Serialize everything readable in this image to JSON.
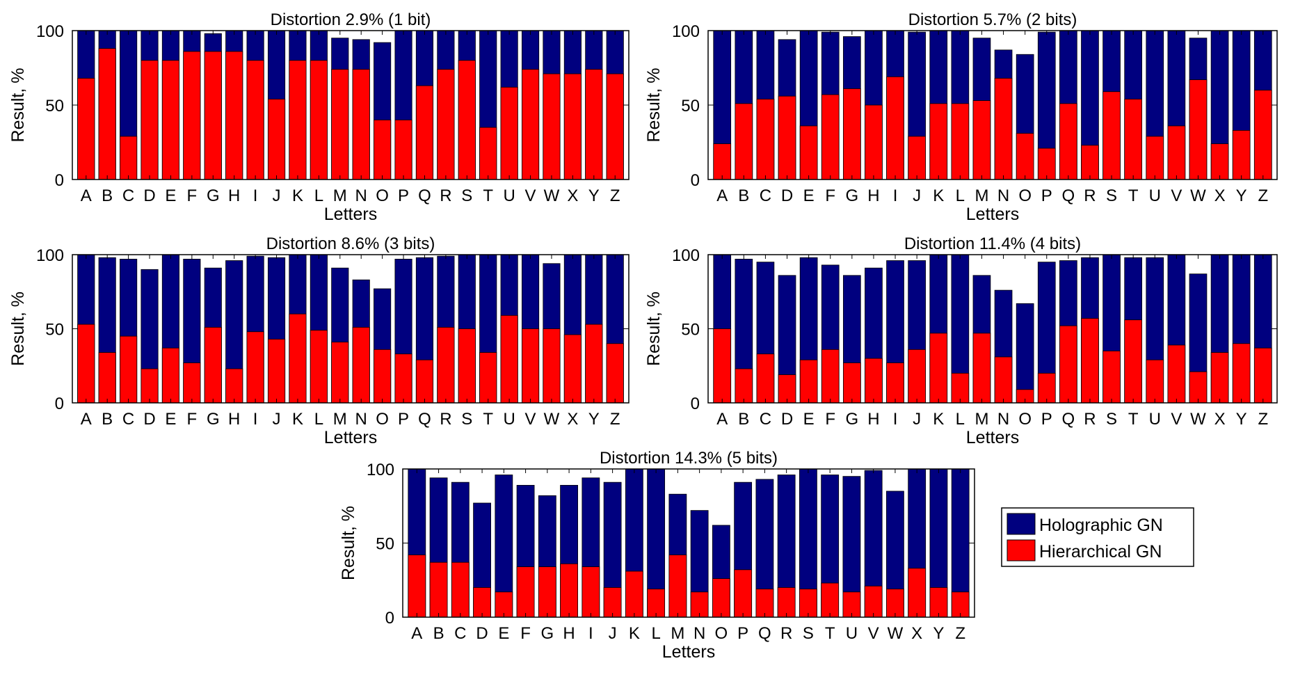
{
  "figure": {
    "legend": {
      "entries": [
        "Holographic GN",
        "Hierarchical GN"
      ],
      "position": "right of bottom panel"
    }
  },
  "colors": {
    "holographic": "#00007f",
    "hierarchical": "#ff0000"
  },
  "chart_data": [
    {
      "type": "bar",
      "title": "Distortion 2.9% (1 bit)",
      "xlabel": "Letters",
      "ylabel": "Result, %",
      "ylim": [
        0,
        100
      ],
      "yticks": [
        "0",
        "50",
        "100"
      ],
      "categories": [
        "A",
        "B",
        "C",
        "D",
        "E",
        "F",
        "G",
        "H",
        "I",
        "J",
        "K",
        "L",
        "M",
        "N",
        "O",
        "P",
        "Q",
        "R",
        "S",
        "T",
        "U",
        "V",
        "W",
        "X",
        "Y",
        "Z"
      ],
      "series": [
        {
          "name": "Holographic GN",
          "values": [
            100,
            100,
            100,
            100,
            100,
            100,
            98,
            100,
            100,
            100,
            100,
            100,
            95,
            94,
            92,
            100,
            100,
            100,
            100,
            100,
            100,
            100,
            100,
            100,
            100,
            100
          ]
        },
        {
          "name": "Hierarchical GN",
          "values": [
            68,
            88,
            29,
            80,
            80,
            86,
            86,
            86,
            80,
            54,
            80,
            80,
            74,
            74,
            40,
            40,
            63,
            74,
            80,
            35,
            62,
            74,
            71,
            71,
            74,
            71
          ]
        }
      ]
    },
    {
      "type": "bar",
      "title": "Distortion 5.7% (2 bits)",
      "xlabel": "Letters",
      "ylabel": "Result, %",
      "ylim": [
        0,
        100
      ],
      "yticks": [
        "0",
        "50",
        "100"
      ],
      "categories": [
        "A",
        "B",
        "C",
        "D",
        "E",
        "F",
        "G",
        "H",
        "I",
        "J",
        "K",
        "L",
        "M",
        "N",
        "O",
        "P",
        "Q",
        "R",
        "S",
        "T",
        "U",
        "V",
        "W",
        "X",
        "Y",
        "Z"
      ],
      "series": [
        {
          "name": "Holographic GN",
          "values": [
            100,
            100,
            100,
            94,
            100,
            99,
            96,
            100,
            100,
            99,
            100,
            100,
            95,
            87,
            84,
            99,
            100,
            100,
            100,
            100,
            100,
            100,
            95,
            100,
            100,
            100
          ]
        },
        {
          "name": "Hierarchical GN",
          "values": [
            24,
            51,
            54,
            56,
            36,
            57,
            61,
            50,
            69,
            29,
            51,
            51,
            53,
            68,
            31,
            21,
            51,
            23,
            59,
            54,
            29,
            36,
            67,
            24,
            33,
            60
          ]
        }
      ]
    },
    {
      "type": "bar",
      "title": "Distortion 8.6% (3 bits)",
      "xlabel": "Letters",
      "ylabel": "Result, %",
      "ylim": [
        0,
        100
      ],
      "yticks": [
        "0",
        "50",
        "100"
      ],
      "categories": [
        "A",
        "B",
        "C",
        "D",
        "E",
        "F",
        "G",
        "H",
        "I",
        "J",
        "K",
        "L",
        "M",
        "N",
        "O",
        "P",
        "Q",
        "R",
        "S",
        "T",
        "U",
        "V",
        "W",
        "X",
        "Y",
        "Z"
      ],
      "series": [
        {
          "name": "Holographic GN",
          "values": [
            100,
            98,
            97,
            90,
            100,
            97,
            91,
            96,
            99,
            98,
            100,
            100,
            91,
            83,
            77,
            97,
            98,
            99,
            100,
            100,
            100,
            100,
            94,
            100,
            100,
            100
          ]
        },
        {
          "name": "Hierarchical GN",
          "values": [
            53,
            34,
            45,
            23,
            37,
            27,
            51,
            23,
            48,
            43,
            60,
            49,
            41,
            51,
            36,
            33,
            29,
            51,
            50,
            34,
            59,
            50,
            50,
            46,
            53,
            40
          ]
        }
      ]
    },
    {
      "type": "bar",
      "title": "Distortion 11.4% (4 bits)",
      "xlabel": "Letters",
      "ylabel": "Result, %",
      "ylim": [
        0,
        100
      ],
      "yticks": [
        "0",
        "50",
        "100"
      ],
      "categories": [
        "A",
        "B",
        "C",
        "D",
        "E",
        "F",
        "G",
        "H",
        "I",
        "J",
        "K",
        "L",
        "M",
        "N",
        "O",
        "P",
        "Q",
        "R",
        "S",
        "T",
        "U",
        "V",
        "W",
        "X",
        "Y",
        "Z"
      ],
      "series": [
        {
          "name": "Holographic GN",
          "values": [
            100,
            97,
            95,
            86,
            98,
            93,
            86,
            91,
            96,
            96,
            100,
            100,
            86,
            76,
            67,
            95,
            96,
            98,
            100,
            98,
            98,
            100,
            87,
            100,
            100,
            100
          ]
        },
        {
          "name": "Hierarchical GN",
          "values": [
            50,
            23,
            33,
            19,
            29,
            36,
            27,
            30,
            27,
            36,
            47,
            20,
            47,
            31,
            9,
            20,
            52,
            57,
            35,
            56,
            29,
            39,
            21,
            34,
            40,
            37
          ]
        }
      ]
    },
    {
      "type": "bar",
      "title": "Distortion 14.3% (5 bits)",
      "xlabel": "Letters",
      "ylabel": "Result, %",
      "ylim": [
        0,
        100
      ],
      "yticks": [
        "0",
        "50",
        "100"
      ],
      "categories": [
        "A",
        "B",
        "C",
        "D",
        "E",
        "F",
        "G",
        "H",
        "I",
        "J",
        "K",
        "L",
        "M",
        "N",
        "O",
        "P",
        "Q",
        "R",
        "S",
        "T",
        "U",
        "V",
        "W",
        "X",
        "Y",
        "Z"
      ],
      "series": [
        {
          "name": "Holographic GN",
          "values": [
            100,
            94,
            91,
            77,
            96,
            89,
            82,
            89,
            94,
            91,
            100,
            100,
            83,
            72,
            62,
            91,
            93,
            96,
            100,
            96,
            95,
            99,
            85,
            100,
            100,
            100
          ]
        },
        {
          "name": "Hierarchical GN",
          "values": [
            42,
            37,
            37,
            20,
            17,
            34,
            34,
            36,
            34,
            20,
            31,
            19,
            42,
            17,
            26,
            32,
            19,
            20,
            19,
            23,
            17,
            21,
            19,
            33,
            20,
            17
          ]
        }
      ]
    }
  ]
}
